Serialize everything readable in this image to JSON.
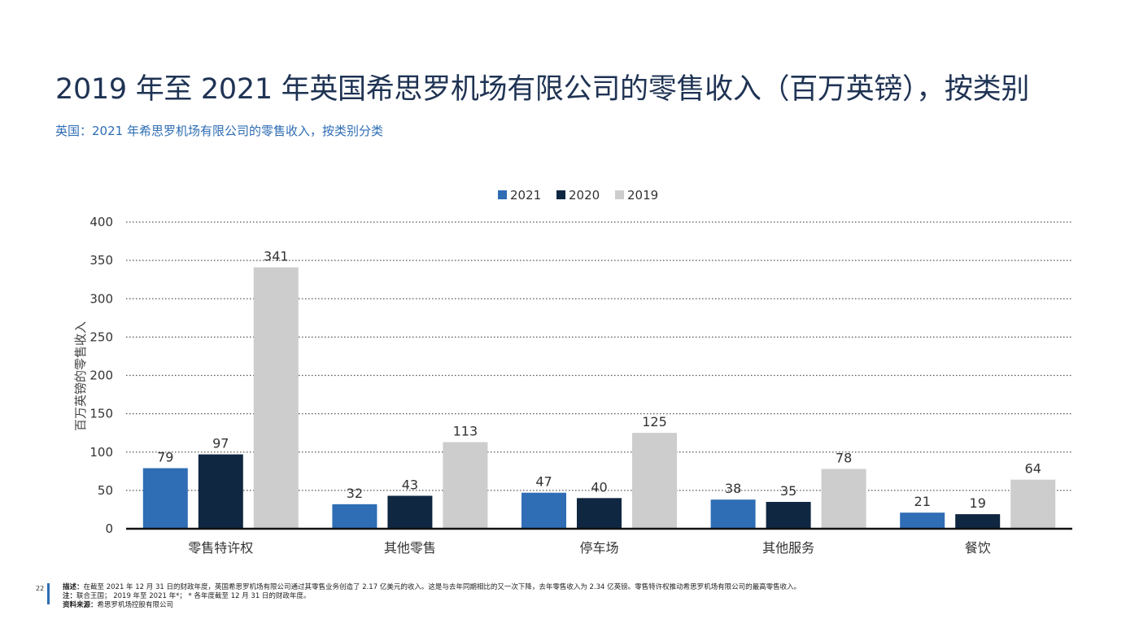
{
  "page": {
    "title": "2019 年至 2021 年英国希思罗机场有限公司的零售收入（百万英镑），按类别",
    "subtitle": "英国：2021 年希思罗机场有限公司的零售收入，按类别分类",
    "page_number": "22"
  },
  "footnotes": {
    "description_label": "描述：",
    "description_text": "在截至 2021 年 12 月 31 日的财政年度，英国希思罗机场有限公司通过其零售业务创造了 2.17 亿美元的收入。这是与去年同期相比的又一次下降，去年零售收入为 2.34 亿英镑。零售特许权推动希思罗机场有限公司的最高零售收入。",
    "note_label": "注：",
    "note_text": "联合王国；  2019 年至 2021 年*；  * 各年度截至 12 月 31 日的财政年度。",
    "source_label": "资料来源：",
    "source_text": "希思罗机场控股有限公司"
  },
  "chart_data": {
    "type": "bar",
    "title": "",
    "xlabel": "",
    "ylabel": "百万英镑的零售收入",
    "ylim": [
      0,
      400
    ],
    "yticks": [
      0,
      50,
      100,
      150,
      200,
      250,
      300,
      350,
      400
    ],
    "grid": true,
    "legend_position": "top-center",
    "categories": [
      "零售特许权",
      "其他零售",
      "停车场",
      "其他服务",
      "餐饮"
    ],
    "series": [
      {
        "name": "2021",
        "color": "#2f6db5",
        "values": [
          79,
          32,
          47,
          38,
          21
        ]
      },
      {
        "name": "2020",
        "color": "#0f2741",
        "values": [
          97,
          43,
          40,
          35,
          19
        ]
      },
      {
        "name": "2019",
        "color": "#cdcdcd",
        "values": [
          341,
          113,
          125,
          78,
          64
        ]
      }
    ]
  }
}
